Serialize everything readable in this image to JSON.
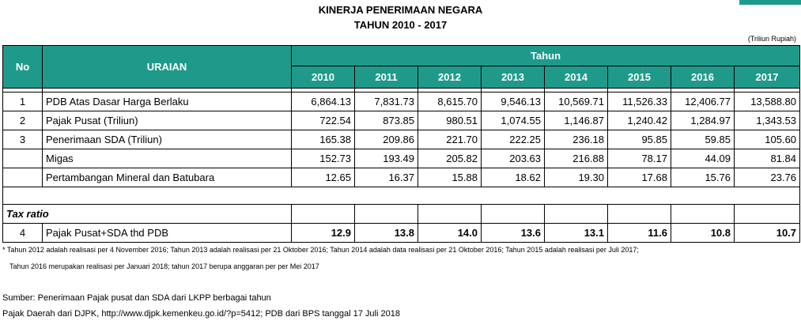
{
  "title_line1": "KINERJA PENERIMAAN NEGARA",
  "title_line2": "TAHUN 2010 - 2017",
  "unit": "(Triliun Rupiah)",
  "header": {
    "no": "No",
    "uraian": "URAIAN",
    "tahun": "Tahun"
  },
  "years": [
    "2010",
    "2011",
    "2012",
    "2013",
    "2014",
    "2015",
    "2016",
    "2017"
  ],
  "rows": [
    {
      "no": "1",
      "label": "PDB Atas Dasar Harga Berlaku",
      "values": [
        "6,864.13",
        "7,831.73",
        "8,615.70",
        "9,546.13",
        "10,569.71",
        "11,526.33",
        "12,406.77",
        "13,588.80"
      ]
    },
    {
      "no": "2",
      "label": "Pajak Pusat (Triliun)",
      "values": [
        "722.54",
        "873.85",
        "980.51",
        "1,074.55",
        "1,146.87",
        "1,240.42",
        "1,284.97",
        "1,343.53"
      ]
    },
    {
      "no": "3",
      "label": "Penerimaan SDA (Triliun)",
      "values": [
        "165.38",
        "209.86",
        "221.70",
        "222.25",
        "236.18",
        "95.85",
        "59.85",
        "105.60"
      ]
    },
    {
      "no": "",
      "label": "Migas",
      "values": [
        "152.73",
        "193.49",
        "205.82",
        "203.63",
        "216.88",
        "78.17",
        "44.09",
        "81.84"
      ]
    },
    {
      "no": "",
      "label": "Pertambangan Mineral dan Batubara",
      "values": [
        "12.65",
        "16.37",
        "15.88",
        "18.62",
        "19.30",
        "17.68",
        "15.76",
        "23.76"
      ]
    }
  ],
  "tax_ratio_label": "Tax ratio",
  "tax_row": {
    "no": "4",
    "label": "Pajak Pusat+SDA thd PDB",
    "values": [
      "12.9",
      "13.8",
      "14.0",
      "13.6",
      "13.1",
      "11.6",
      "10.8",
      "10.7"
    ]
  },
  "notes": [
    "* Tahun 2012 adalah realisasi per 4 November 2016; Tahun 2013 adalah realisasi per 21 Oktober 2016;  Tahun 2014 adalah data realisasi per 21 Oktober 2016; Tahun 2015 adalah realisasi per Juli 2017;",
    "Tahun 2016 merupakan realisasi  per Januari 2018; tahun 2017 berupa anggaran per per Mei 2017"
  ],
  "sources": [
    "Sumber: Penerimaan Pajak pusat dan SDA dari LKPP berbagai tahun",
    "Pajak Daerah dari DJPK, http://www.djpk.kemenkeu.go.id/?p=5412; PDB dari BPS tanggal 17 Juli 2018"
  ]
}
